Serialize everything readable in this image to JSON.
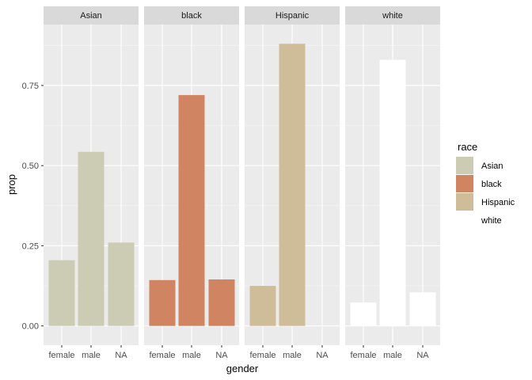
{
  "chart_data": {
    "type": "bar",
    "facet_variable": "race",
    "facets": [
      "Asian",
      "black",
      "Hispanic",
      "white"
    ],
    "categories": [
      "female",
      "male",
      "NA"
    ],
    "xlabel": "gender",
    "ylabel": "prop",
    "ylim": [
      -0.06,
      0.94
    ],
    "yticks": [
      0.0,
      0.25,
      0.5,
      0.75
    ],
    "ytick_labels": [
      "0.00",
      "0.25",
      "0.50",
      "0.75"
    ],
    "grid": true,
    "legend": {
      "title": "race",
      "placement": "right",
      "entries": [
        "Asian",
        "black",
        "Hispanic",
        "white"
      ]
    },
    "colors": {
      "Asian": "#cccbb4",
      "black": "#d08462",
      "Hispanic": "#cfbc99",
      "white": "#ffffff",
      "panel_background": "#ebebeb",
      "strip_background": "#d9d9d9",
      "grid_major": "#ffffff",
      "grid_minor": "#f5f5f5"
    },
    "series": [
      {
        "name": "Asian",
        "values": [
          0.205,
          0.543,
          0.26
        ]
      },
      {
        "name": "black",
        "values": [
          0.143,
          0.72,
          0.145
        ]
      },
      {
        "name": "Hispanic",
        "values": [
          0.125,
          0.88,
          null
        ]
      },
      {
        "name": "white",
        "values": [
          0.073,
          0.83,
          0.105
        ]
      }
    ]
  }
}
